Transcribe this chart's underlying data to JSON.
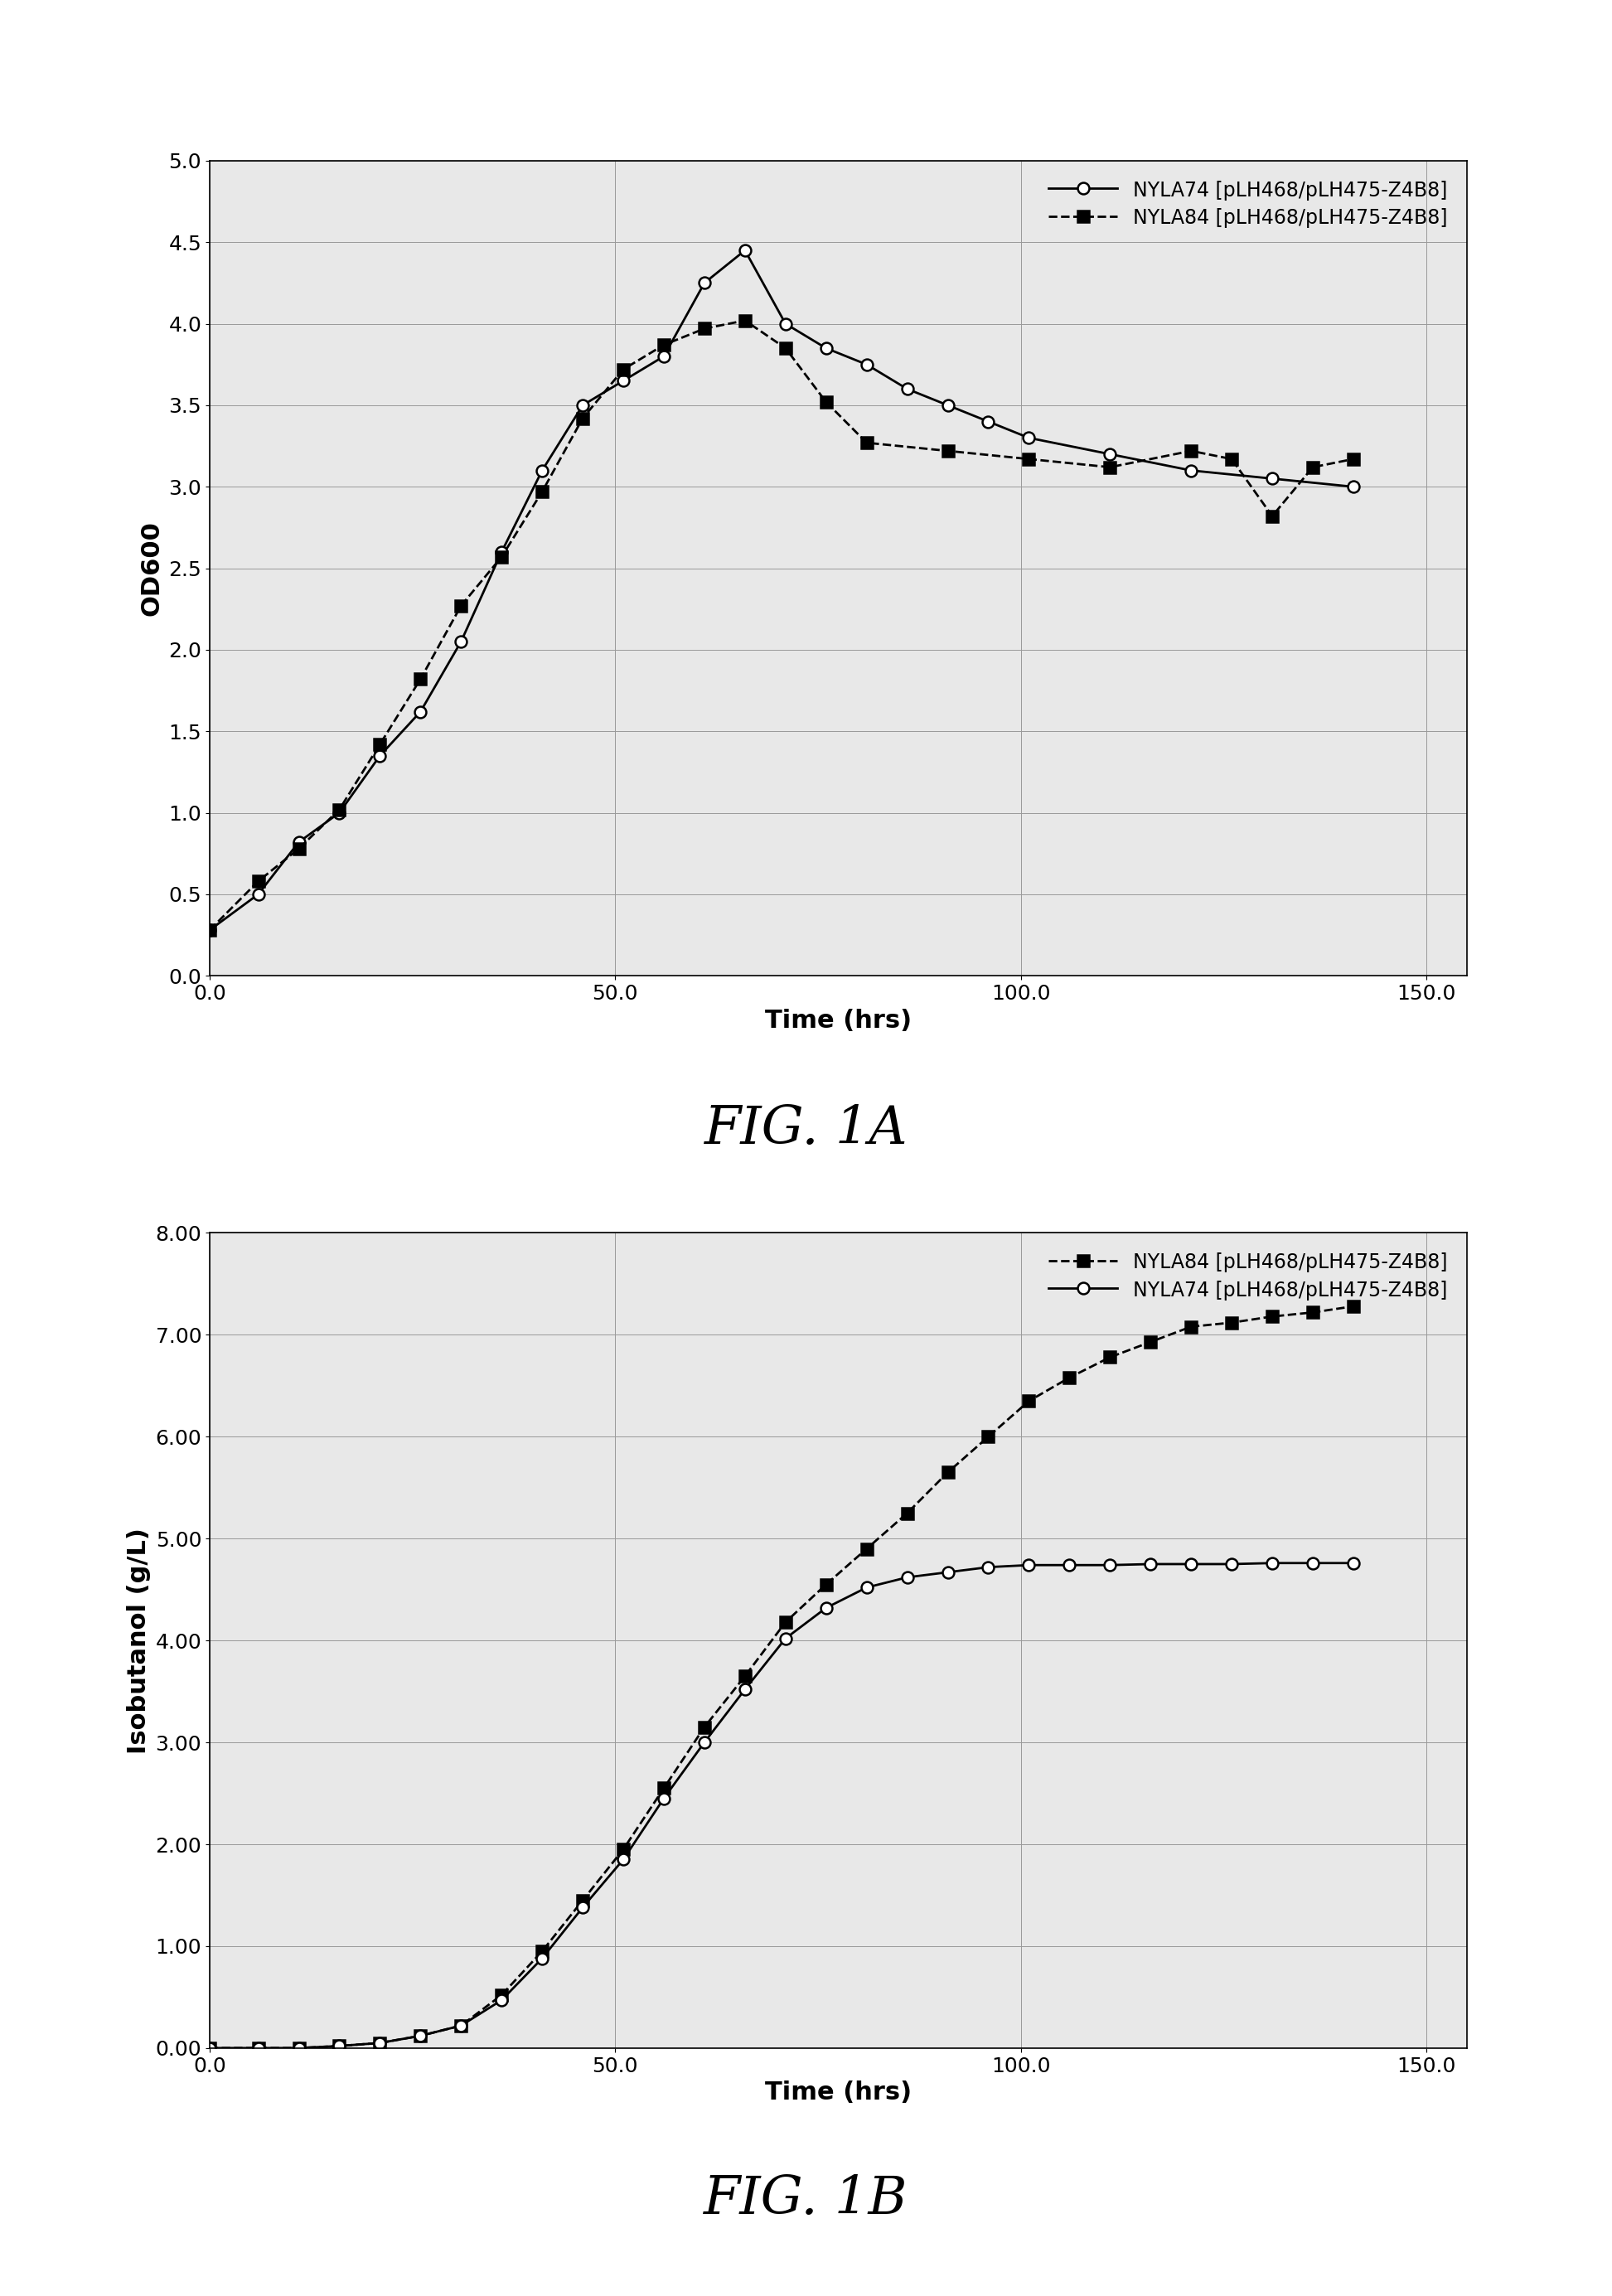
{
  "fig1a": {
    "xlabel": "Time (hrs)",
    "ylabel": "OD600",
    "xlim": [
      0,
      155
    ],
    "ylim": [
      0.0,
      5.0
    ],
    "xticks": [
      0.0,
      50.0,
      100.0,
      150.0
    ],
    "yticks": [
      0.0,
      0.5,
      1.0,
      1.5,
      2.0,
      2.5,
      3.0,
      3.5,
      4.0,
      4.5,
      5.0
    ],
    "series": [
      {
        "label": "NYLA74 [pLH468/pLH475-Z4B8]",
        "marker": "o",
        "markerfacecolor": "white",
        "markeredgecolor": "black",
        "linestyle": "-",
        "color": "black",
        "x": [
          0,
          6,
          11,
          16,
          21,
          26,
          31,
          36,
          41,
          46,
          51,
          56,
          61,
          66,
          71,
          76,
          81,
          86,
          91,
          96,
          101,
          111,
          121,
          131,
          141
        ],
        "y": [
          0.28,
          0.5,
          0.82,
          1.0,
          1.35,
          1.62,
          2.05,
          2.6,
          3.1,
          3.5,
          3.65,
          3.8,
          4.25,
          4.45,
          4.0,
          3.85,
          3.75,
          3.6,
          3.5,
          3.4,
          3.3,
          3.2,
          3.1,
          3.05,
          3.0
        ]
      },
      {
        "label": "NYLA84 [pLH468/pLH475-Z4B8]",
        "marker": "s",
        "markerfacecolor": "black",
        "markeredgecolor": "black",
        "linestyle": "--",
        "color": "black",
        "x": [
          0,
          6,
          11,
          16,
          21,
          26,
          31,
          36,
          41,
          46,
          51,
          56,
          61,
          66,
          71,
          76,
          81,
          91,
          101,
          111,
          121,
          126,
          131,
          136,
          141
        ],
        "y": [
          0.28,
          0.58,
          0.78,
          1.02,
          1.42,
          1.82,
          2.27,
          2.57,
          2.97,
          3.42,
          3.72,
          3.87,
          3.97,
          4.02,
          3.85,
          3.52,
          3.27,
          3.22,
          3.17,
          3.12,
          3.22,
          3.17,
          2.82,
          3.12,
          3.17
        ]
      }
    ]
  },
  "fig1b": {
    "xlabel": "Time (hrs)",
    "ylabel": "Isobutanol (g/L)",
    "xlim": [
      0,
      155
    ],
    "ylim": [
      0.0,
      8.0
    ],
    "xticks": [
      0.0,
      50.0,
      100.0,
      150.0
    ],
    "yticks": [
      0.0,
      1.0,
      2.0,
      3.0,
      4.0,
      5.0,
      6.0,
      7.0,
      8.0
    ],
    "series": [
      {
        "label": "NYLA84 [pLH468/pLH475-Z4B8]",
        "marker": "s",
        "markerfacecolor": "black",
        "markeredgecolor": "black",
        "linestyle": "--",
        "color": "black",
        "x": [
          0,
          6,
          11,
          16,
          21,
          26,
          31,
          36,
          41,
          46,
          51,
          56,
          61,
          66,
          71,
          76,
          81,
          86,
          91,
          96,
          101,
          106,
          111,
          116,
          121,
          126,
          131,
          136,
          141
        ],
        "y": [
          0.0,
          0.0,
          0.0,
          0.02,
          0.05,
          0.12,
          0.22,
          0.52,
          0.95,
          1.45,
          1.95,
          2.55,
          3.15,
          3.65,
          4.18,
          4.55,
          4.9,
          5.25,
          5.65,
          6.0,
          6.35,
          6.58,
          6.78,
          6.93,
          7.08,
          7.12,
          7.18,
          7.22,
          7.28
        ]
      },
      {
        "label": "NYLA74 [pLH468/pLH475-Z4B8]",
        "marker": "o",
        "markerfacecolor": "white",
        "markeredgecolor": "black",
        "linestyle": "-",
        "color": "black",
        "x": [
          0,
          6,
          11,
          16,
          21,
          26,
          31,
          36,
          41,
          46,
          51,
          56,
          61,
          66,
          71,
          76,
          81,
          86,
          91,
          96,
          101,
          106,
          111,
          116,
          121,
          126,
          131,
          136,
          141
        ],
        "y": [
          0.0,
          0.0,
          0.0,
          0.02,
          0.05,
          0.12,
          0.22,
          0.47,
          0.88,
          1.38,
          1.85,
          2.45,
          3.0,
          3.52,
          4.02,
          4.32,
          4.52,
          4.62,
          4.67,
          4.72,
          4.74,
          4.74,
          4.74,
          4.75,
          4.75,
          4.75,
          4.76,
          4.76,
          4.76
        ]
      }
    ]
  },
  "background_color": "#e8e8e8",
  "plot_background": "#e8e8e8",
  "axis_label_fontsize": 22,
  "tick_fontsize": 18,
  "legend_fontsize": 17,
  "fig_caption_fontsize": 46,
  "caption_1a": "FIG. 1A",
  "caption_1b": "FIG. 1B"
}
